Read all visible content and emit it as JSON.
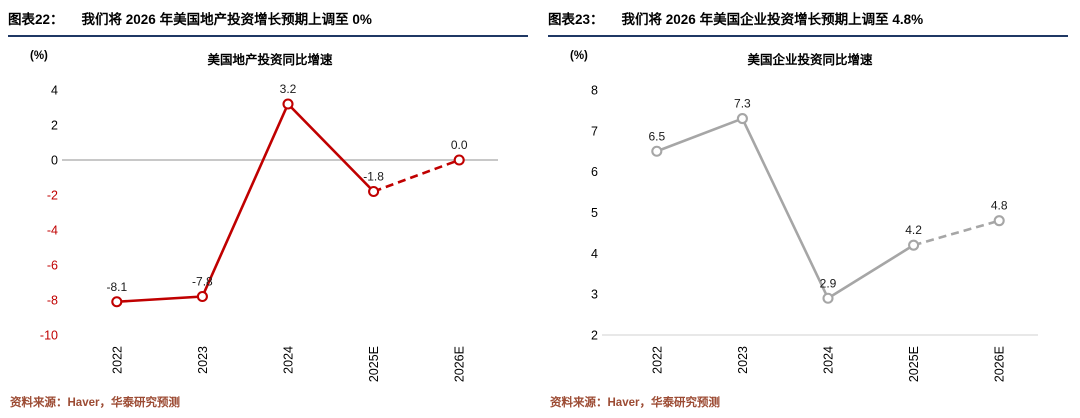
{
  "styles": {
    "header_underline_color": "#1f3864",
    "source_color": "#9c4b33",
    "background": "#ffffff"
  },
  "chart_data": [
    {
      "type": "line",
      "figure_label": "图表22：",
      "header_title": "我们将 2026 年美国地产投资增长预期上调至 0%",
      "unit": "(%)",
      "title": "美国地产投资同比增速",
      "categories": [
        "2022",
        "2023",
        "2024",
        "2025E",
        "2026E"
      ],
      "values": [
        -8.1,
        -7.8,
        3.2,
        -1.8,
        0.0
      ],
      "value_labels": [
        "-8.1",
        "-7.8",
        "3.2",
        "-1.8",
        "0.0"
      ],
      "ylim": [
        -10,
        4
      ],
      "yticks": [
        4,
        2,
        0,
        -2,
        -4,
        -6,
        -8,
        -10
      ],
      "axis_line_at": 0,
      "axis_line_color": "#a6a6a6",
      "dashed_from_index": 3,
      "line_color": "#c00000",
      "tick_color": "#000000",
      "negative_tick_color": "#c00000",
      "grid": false,
      "legend": "none",
      "source": "资料来源：Haver，华泰研究预测"
    },
    {
      "type": "line",
      "figure_label": "图表23：",
      "header_title": "我们将 2026 年美国企业投资增长预期上调至 4.8%",
      "unit": "(%)",
      "title": "美国企业投资同比增速",
      "categories": [
        "2022",
        "2023",
        "2024",
        "2025E",
        "2026E"
      ],
      "values": [
        6.5,
        7.3,
        2.9,
        4.2,
        4.8
      ],
      "value_labels": [
        "6.5",
        "7.3",
        "2.9",
        "4.2",
        "4.8"
      ],
      "ylim": [
        2,
        8
      ],
      "yticks": [
        8,
        7,
        6,
        5,
        4,
        3,
        2
      ],
      "axis_line_at": 2,
      "axis_line_color": "#d9d9d9",
      "dashed_from_index": 3,
      "line_color": "#a6a6a6",
      "tick_color": "#000000",
      "negative_tick_color": "#c00000",
      "grid": false,
      "legend": "none",
      "source": "资料来源：Haver，华泰研究预测"
    }
  ]
}
